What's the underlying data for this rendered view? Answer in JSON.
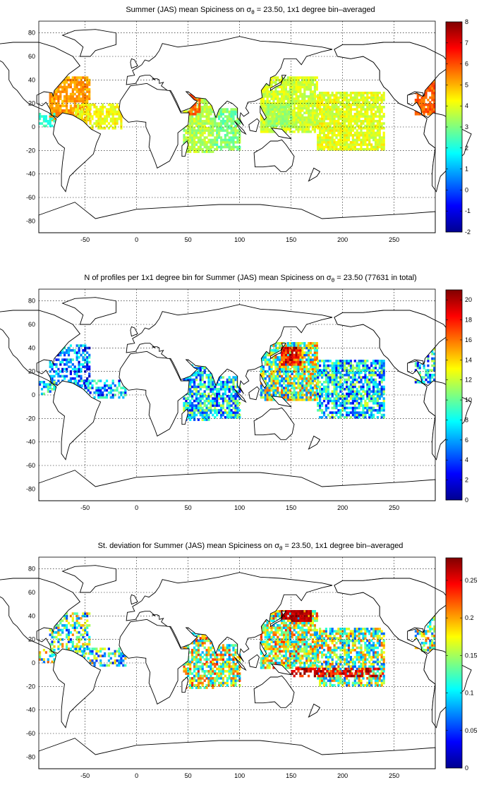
{
  "colors": {
    "colormap": "jet",
    "background": "#ffffff",
    "land_outline": "#000000"
  },
  "panels": [
    {
      "name": "mean-spiciness",
      "title_parts": [
        "Summer (JAS) mean Spiciness on ",
        "σ",
        "θ",
        " = 23.50, 1x1 degree bin–averaged"
      ],
      "x_ticks": [
        "-50",
        "0",
        "50",
        "100",
        "150",
        "200",
        "250"
      ],
      "y_ticks": [
        "80",
        "60",
        "40",
        "20",
        "0",
        "-20",
        "-40",
        "-60",
        "-80"
      ],
      "colorbar_ticks": [
        "8",
        "7",
        "6",
        "5",
        "4",
        "3",
        "2",
        "1",
        "0",
        "-1",
        "-2"
      ],
      "clim": [
        -2,
        8
      ]
    },
    {
      "name": "profile-count",
      "title_parts": [
        "N of profiles per 1x1 degree bin for Summer (JAS) mean Spiciness on ",
        "σ",
        "θ",
        " = 23.50 (77631 in total)"
      ],
      "x_ticks": [
        "-50",
        "0",
        "50",
        "100",
        "150",
        "200",
        "250"
      ],
      "y_ticks": [
        "80",
        "60",
        "40",
        "20",
        "0",
        "-20",
        "-40",
        "-60",
        "-80"
      ],
      "colorbar_ticks": [
        "20",
        "18",
        "16",
        "14",
        "12",
        "10",
        "8",
        "6",
        "4",
        "2",
        "0"
      ],
      "clim": [
        0,
        21
      ]
    },
    {
      "name": "std-deviation",
      "title_parts": [
        "St. deviation for Summer (JAS) mean Spiciness on ",
        "σ",
        "θ",
        " = 23.50, 1x1 degree bin–averaged"
      ],
      "x_ticks": [
        "-50",
        "0",
        "50",
        "100",
        "150",
        "200",
        "250"
      ],
      "y_ticks": [
        "80",
        "60",
        "40",
        "20",
        "0",
        "-20",
        "-40",
        "-60",
        "-80"
      ],
      "colorbar_ticks": [
        "0.25",
        "0.2",
        "0.15",
        "0.1",
        "0.05",
        "0"
      ],
      "clim": [
        0,
        0.28
      ]
    }
  ]
}
